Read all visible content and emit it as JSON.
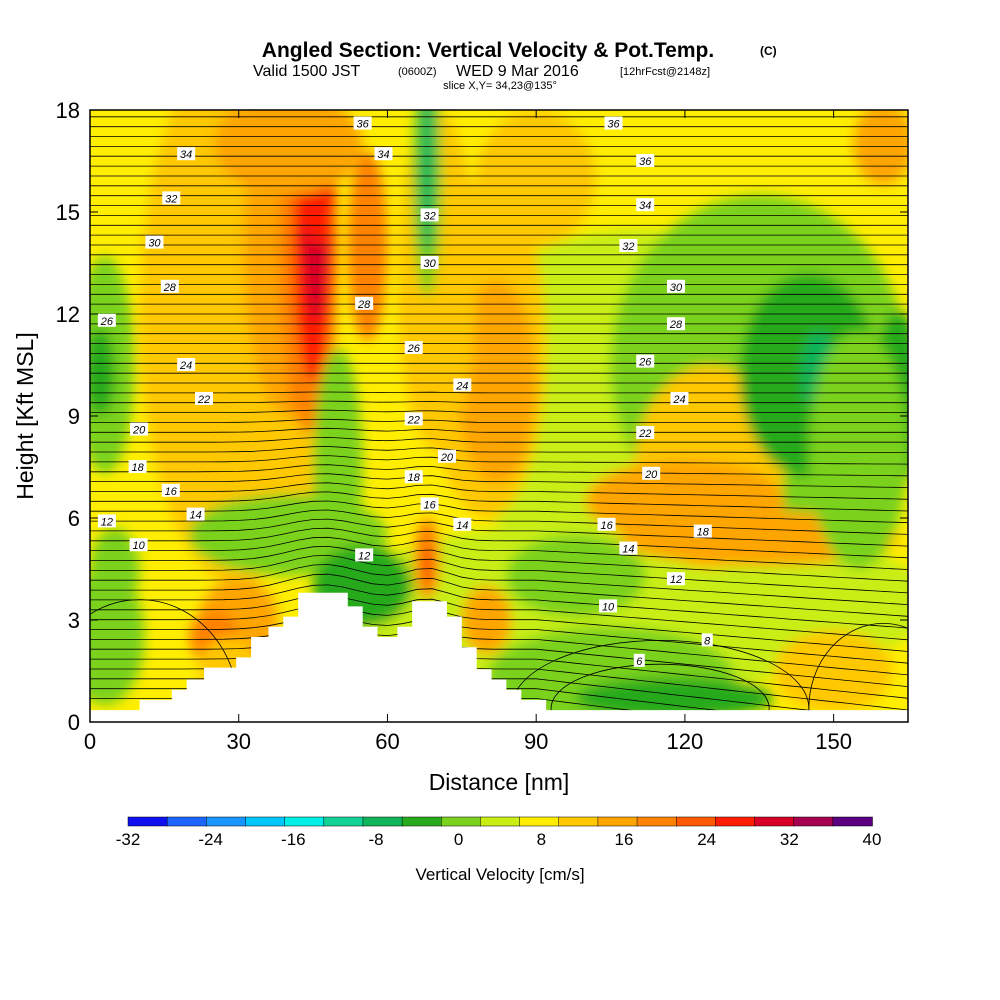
{
  "title": {
    "main": "Angled Section: Vertical Velocity & Pot.Temp.",
    "main_suffix": "(C)",
    "valid_a": "Valid 1500 JST",
    "valid_b": "(0600Z)",
    "valid_c": "WED 9 Mar 2016",
    "valid_d": "[12hrFcst@2148z]",
    "slice": "slice X,Y= 34,23@135°"
  },
  "chart_data": {
    "type": "heatmap",
    "xlabel": "Distance [nm]",
    "ylabel": "Height [Kft MSL]",
    "xlim": [
      0,
      165
    ],
    "ylim": [
      0,
      18
    ],
    "x_ticks": [
      "0",
      "30",
      "60",
      "90",
      "120",
      "150"
    ],
    "y_ticks": [
      "0",
      "3",
      "6",
      "9",
      "12",
      "15",
      "18"
    ],
    "colorbar": {
      "label": "Vertical Velocity [cm/s]",
      "tick_labels": [
        "-32",
        "-24",
        "-16",
        "-8",
        "0",
        "8",
        "16",
        "24",
        "32",
        "40"
      ],
      "levels": [
        -32,
        -28,
        -24,
        -20,
        -16,
        -12,
        -8,
        -4,
        0,
        4,
        8,
        12,
        16,
        20,
        24,
        28,
        32,
        36,
        40
      ],
      "colors": [
        "#1010f0",
        "#1e64ff",
        "#1996ff",
        "#00c8ff",
        "#00f0e8",
        "#12d296",
        "#10b45a",
        "#28aa1e",
        "#7ad21e",
        "#c8ee14",
        "#ffee00",
        "#ffc800",
        "#ffa500",
        "#ff8200",
        "#ff5a00",
        "#ff1e00",
        "#d80028",
        "#a80050",
        "#5a0080"
      ]
    },
    "theta_labels": [
      {
        "v": "36",
        "x": 55.0,
        "y": 17.6
      },
      {
        "v": "34",
        "x": 19.4,
        "y": 16.7
      },
      {
        "v": "32",
        "x": 16.4,
        "y": 15.4
      },
      {
        "v": "30",
        "x": 13.0,
        "y": 14.1
      },
      {
        "v": "28",
        "x": 16.1,
        "y": 12.8
      },
      {
        "v": "26",
        "x": 3.4,
        "y": 11.8
      },
      {
        "v": "24",
        "x": 19.4,
        "y": 10.5
      },
      {
        "v": "22",
        "x": 23.0,
        "y": 9.5
      },
      {
        "v": "20",
        "x": 9.9,
        "y": 8.6
      },
      {
        "v": "18",
        "x": 9.6,
        "y": 7.5
      },
      {
        "v": "16",
        "x": 16.3,
        "y": 6.8
      },
      {
        "v": "14",
        "x": 21.3,
        "y": 6.1
      },
      {
        "v": "12",
        "x": 3.4,
        "y": 5.9
      },
      {
        "v": "10",
        "x": 9.8,
        "y": 5.2
      },
      {
        "v": "34",
        "x": 59.2,
        "y": 16.7
      },
      {
        "v": "32",
        "x": 68.5,
        "y": 14.9
      },
      {
        "v": "30",
        "x": 68.5,
        "y": 13.5
      },
      {
        "v": "28",
        "x": 55.3,
        "y": 12.3
      },
      {
        "v": "26",
        "x": 65.3,
        "y": 11.0
      },
      {
        "v": "24",
        "x": 75.1,
        "y": 9.9
      },
      {
        "v": "22",
        "x": 65.3,
        "y": 8.9
      },
      {
        "v": "20",
        "x": 72.0,
        "y": 7.8
      },
      {
        "v": "18",
        "x": 65.3,
        "y": 7.2
      },
      {
        "v": "16",
        "x": 68.5,
        "y": 6.4
      },
      {
        "v": "14",
        "x": 75.1,
        "y": 5.8
      },
      {
        "v": "12",
        "x": 55.3,
        "y": 4.9
      },
      {
        "v": "36",
        "x": 105.6,
        "y": 17.6
      },
      {
        "v": "36",
        "x": 112.0,
        "y": 16.5
      },
      {
        "v": "34",
        "x": 112.0,
        "y": 15.2
      },
      {
        "v": "32",
        "x": 108.6,
        "y": 14.0
      },
      {
        "v": "30",
        "x": 118.2,
        "y": 12.8
      },
      {
        "v": "28",
        "x": 118.2,
        "y": 11.7
      },
      {
        "v": "26",
        "x": 112.0,
        "y": 10.6
      },
      {
        "v": "24",
        "x": 118.9,
        "y": 9.5
      },
      {
        "v": "22",
        "x": 112.0,
        "y": 8.5
      },
      {
        "v": "20",
        "x": 113.2,
        "y": 7.3
      },
      {
        "v": "18",
        "x": 123.6,
        "y": 5.6
      },
      {
        "v": "16",
        "x": 104.2,
        "y": 5.8
      },
      {
        "v": "14",
        "x": 108.6,
        "y": 5.1
      },
      {
        "v": "12",
        "x": 118.2,
        "y": 4.2
      },
      {
        "v": "10",
        "x": 104.5,
        "y": 3.4
      },
      {
        "v": "8",
        "x": 124.5,
        "y": 2.4
      },
      {
        "v": "6",
        "x": 110.8,
        "y": 1.8
      }
    ],
    "terrain": [
      [
        0,
        0.35
      ],
      [
        10,
        0.35
      ],
      [
        10,
        0.65
      ],
      [
        16.5,
        0.65
      ],
      [
        16.5,
        0.95
      ],
      [
        19.5,
        0.95
      ],
      [
        19.5,
        1.25
      ],
      [
        23,
        1.25
      ],
      [
        23,
        1.6
      ],
      [
        29.5,
        1.6
      ],
      [
        29.5,
        1.9
      ],
      [
        32.5,
        1.9
      ],
      [
        32.5,
        2.5
      ],
      [
        36,
        2.5
      ],
      [
        36,
        2.8
      ],
      [
        39,
        2.8
      ],
      [
        39,
        3.1
      ],
      [
        42,
        3.1
      ],
      [
        42,
        3.8
      ],
      [
        52,
        3.8
      ],
      [
        52,
        3.4
      ],
      [
        55,
        3.4
      ],
      [
        55,
        2.8
      ],
      [
        58,
        2.8
      ],
      [
        58,
        2.5
      ],
      [
        62,
        2.5
      ],
      [
        62,
        2.8
      ],
      [
        65,
        2.8
      ],
      [
        65,
        3.55
      ],
      [
        72,
        3.55
      ],
      [
        72,
        3.1
      ],
      [
        75,
        3.1
      ],
      [
        75,
        2.2
      ],
      [
        78,
        2.2
      ],
      [
        78,
        1.55
      ],
      [
        81,
        1.55
      ],
      [
        81,
        1.25
      ],
      [
        84,
        1.25
      ],
      [
        84,
        0.95
      ],
      [
        87,
        0.95
      ],
      [
        87,
        0.65
      ],
      [
        92,
        0.65
      ],
      [
        92,
        0.35
      ],
      [
        165,
        0.35
      ]
    ]
  }
}
